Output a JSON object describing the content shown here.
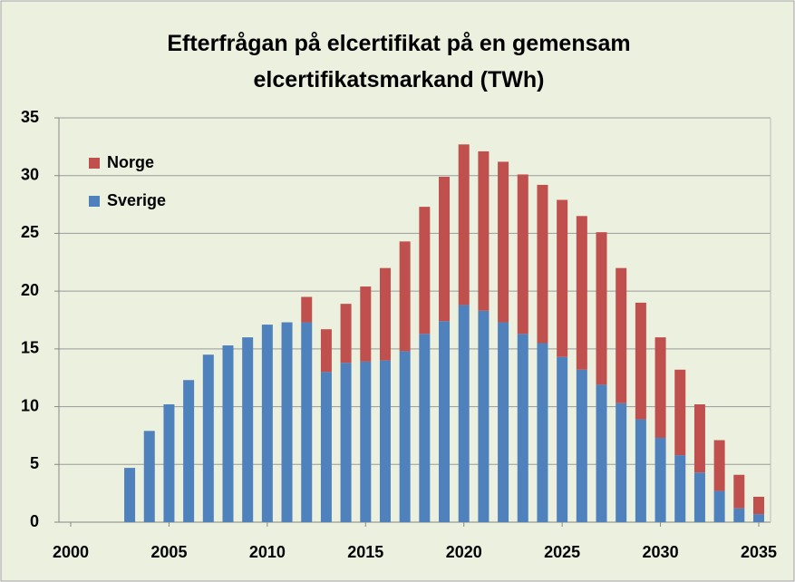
{
  "chart_data": {
    "type": "stacked_bar",
    "title": "Efterfrågan på elcertifikat på en gemensam elcertifikatsmarkand (TWh)",
    "x": [
      2003,
      2004,
      2005,
      2006,
      2007,
      2008,
      2009,
      2010,
      2011,
      2012,
      2013,
      2014,
      2015,
      2016,
      2017,
      2018,
      2019,
      2020,
      2021,
      2022,
      2023,
      2024,
      2025,
      2026,
      2027,
      2028,
      2029,
      2030,
      2031,
      2032,
      2033,
      2034,
      2035
    ],
    "series": [
      {
        "name": "Sverige",
        "color": "#4f81bd",
        "values": [
          4.7,
          7.9,
          10.2,
          12.3,
          14.5,
          15.3,
          16.0,
          17.1,
          17.3,
          17.3,
          13.0,
          13.8,
          13.9,
          14.0,
          14.8,
          16.3,
          17.4,
          18.8,
          18.3,
          17.3,
          16.3,
          15.5,
          14.3,
          13.2,
          11.9,
          10.3,
          8.9,
          7.3,
          5.8,
          4.3,
          2.7,
          1.2,
          0.7
        ]
      },
      {
        "name": "Norge",
        "color": "#c0504d",
        "values": [
          null,
          null,
          null,
          null,
          null,
          null,
          null,
          null,
          null,
          2.2,
          3.7,
          5.1,
          6.5,
          8.0,
          9.5,
          11.0,
          12.5,
          13.9,
          13.8,
          13.9,
          13.8,
          13.7,
          13.6,
          13.3,
          13.2,
          11.7,
          10.1,
          8.7,
          7.4,
          5.9,
          4.4,
          2.9,
          1.5
        ]
      }
    ],
    "xlim": [
      1999.4,
      2035.6
    ],
    "xticks": [
      2000,
      2005,
      2010,
      2015,
      2020,
      2025,
      2030,
      2035
    ],
    "ylim": [
      0,
      35
    ],
    "yticks": [
      0,
      5,
      10,
      15,
      20,
      25,
      30,
      35
    ],
    "grid": true,
    "legend": "upper left"
  }
}
